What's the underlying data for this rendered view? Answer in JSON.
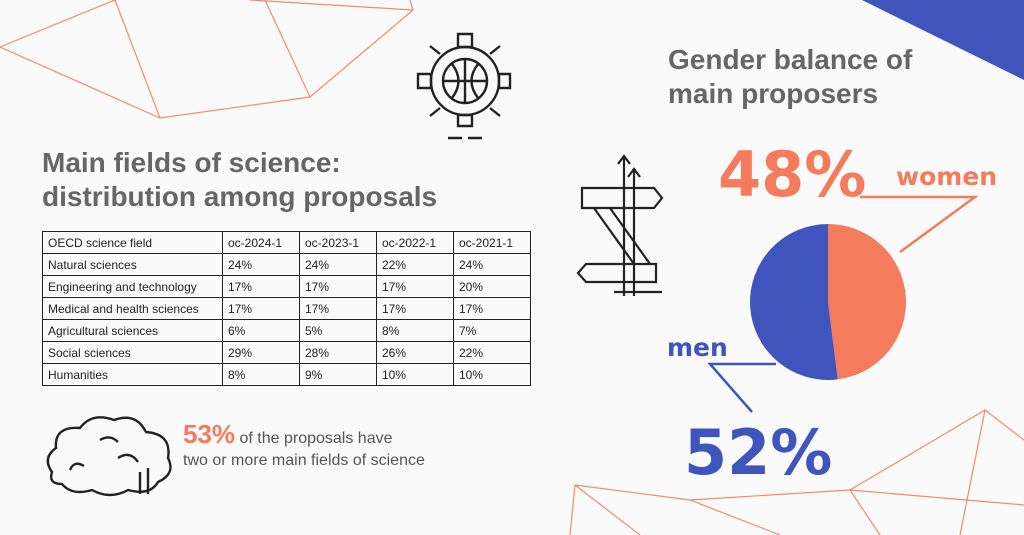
{
  "colors": {
    "women": "#f47c5c",
    "men": "#3f55bd",
    "title": "#666666",
    "deco": "#f28a6e"
  },
  "left_title": [
    "Main fields of science:",
    "distribution among proposals"
  ],
  "right_title": [
    "Gender balance of",
    "main proposers"
  ],
  "table": {
    "headers": [
      "OECD science field",
      "oc-2024-1",
      "oc-2023-1",
      "oc-2022-1",
      "oc-2021-1"
    ],
    "rows": [
      [
        "Natural sciences",
        "24%",
        "24%",
        "22%",
        "24%"
      ],
      [
        "Engineering and technology",
        "17%",
        "17%",
        "17%",
        "20%"
      ],
      [
        "Medical and health sciences",
        "17%",
        "17%",
        "17%",
        "17%"
      ],
      [
        "Agricultural sciences",
        "6%",
        "5%",
        "8%",
        "7%"
      ],
      [
        "Social sciences",
        "29%",
        "28%",
        "26%",
        "22%"
      ],
      [
        "Humanities",
        "8%",
        "9%",
        "10%",
        "10%"
      ]
    ]
  },
  "stat": {
    "value": "53%",
    "line1": "of the proposals have",
    "line2": "two or more main fields of science"
  },
  "pie_labels": {
    "women_pct": "48%",
    "women": "women",
    "men_pct": "52%",
    "men": "men"
  },
  "icons": [
    "brain-globe-gear-icon",
    "signpost-icon",
    "cloud-icon"
  ],
  "chart_data": {
    "type": "pie",
    "title": "Gender balance of main proposers",
    "categories": [
      "women",
      "men"
    ],
    "values": [
      48,
      52
    ],
    "colors": [
      "#f47c5c",
      "#3f55bd"
    ]
  }
}
